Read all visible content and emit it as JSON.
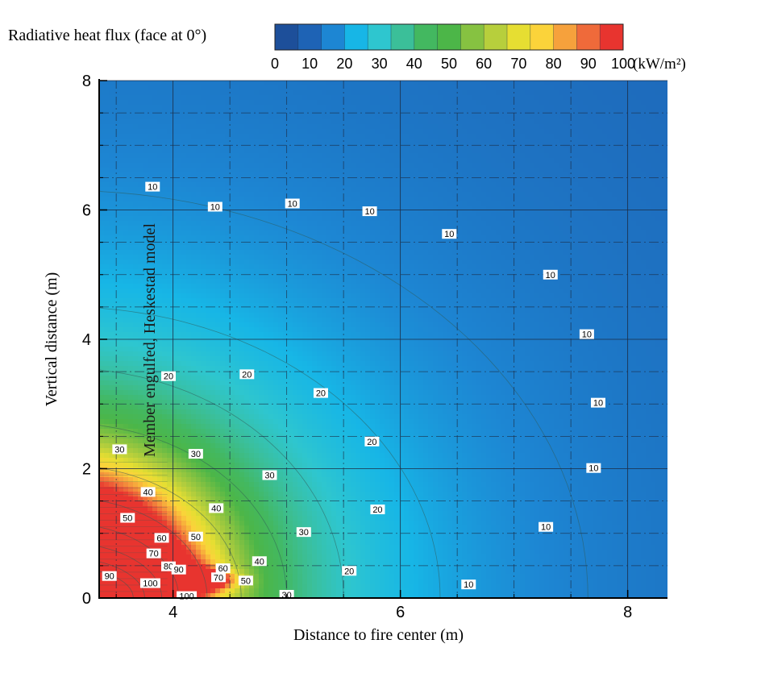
{
  "chart_data": {
    "type": "heatmap",
    "title": "",
    "colorbar": {
      "label": "Radiative heat flux (face at 0°)",
      "unit": "(kW/m²)",
      "ticks": [
        0,
        10,
        20,
        30,
        40,
        50,
        60,
        70,
        80,
        90,
        100
      ],
      "range": [
        0,
        100
      ],
      "colors": [
        "#1d4f9a",
        "#1e63b5",
        "#1d86d3",
        "#17b6e6",
        "#2ec6cf",
        "#3bbf99",
        "#43b860",
        "#4cb648",
        "#86c241",
        "#b7cf3c",
        "#e6de32",
        "#fbd33a",
        "#f6a13c",
        "#ef6a3a",
        "#e8342f"
      ]
    },
    "xlabel": "Distance to fire center (m)",
    "ylabel": "Vertical distance (m)",
    "xlim": [
      3.35,
      8.35
    ],
    "ylim": [
      0,
      8
    ],
    "xticks": [
      "4",
      "6",
      "8"
    ],
    "xtick_values": [
      4,
      6,
      8
    ],
    "yticks": [
      "0",
      "2",
      "4",
      "6",
      "8"
    ],
    "ytick_values": [
      0,
      2,
      4,
      6,
      8
    ],
    "grid": true,
    "annotation": "Member engulfed, Heskestad model",
    "contour_levels": [
      10,
      20,
      30,
      40,
      50,
      60,
      70,
      80,
      90,
      100
    ],
    "contour_labels": [
      {
        "text": "10",
        "x": 3.82,
        "y": 6.36
      },
      {
        "text": "10",
        "x": 4.37,
        "y": 6.05
      },
      {
        "text": "10",
        "x": 5.05,
        "y": 6.1
      },
      {
        "text": "10",
        "x": 5.73,
        "y": 5.98
      },
      {
        "text": "10",
        "x": 6.43,
        "y": 5.63
      },
      {
        "text": "10",
        "x": 7.32,
        "y": 5.0
      },
      {
        "text": "10",
        "x": 7.64,
        "y": 4.08
      },
      {
        "text": "10",
        "x": 7.74,
        "y": 3.02
      },
      {
        "text": "10",
        "x": 7.7,
        "y": 2.01
      },
      {
        "text": "10",
        "x": 7.28,
        "y": 1.1
      },
      {
        "text": "10",
        "x": 6.6,
        "y": 0.21
      },
      {
        "text": "20",
        "x": 3.96,
        "y": 3.43
      },
      {
        "text": "20",
        "x": 4.65,
        "y": 3.46
      },
      {
        "text": "20",
        "x": 5.3,
        "y": 3.17
      },
      {
        "text": "20",
        "x": 5.75,
        "y": 2.42
      },
      {
        "text": "20",
        "x": 5.8,
        "y": 1.37
      },
      {
        "text": "20",
        "x": 5.55,
        "y": 0.42
      },
      {
        "text": "30",
        "x": 3.53,
        "y": 2.3
      },
      {
        "text": "30",
        "x": 4.2,
        "y": 2.23
      },
      {
        "text": "30",
        "x": 4.85,
        "y": 1.9
      },
      {
        "text": "30",
        "x": 5.15,
        "y": 1.02
      },
      {
        "text": "30",
        "x": 5.0,
        "y": 0.05
      },
      {
        "text": "40",
        "x": 3.78,
        "y": 1.64
      },
      {
        "text": "40",
        "x": 4.38,
        "y": 1.39
      },
      {
        "text": "40",
        "x": 4.76,
        "y": 0.57
      },
      {
        "text": "50",
        "x": 3.6,
        "y": 1.24
      },
      {
        "text": "50",
        "x": 4.2,
        "y": 0.95
      },
      {
        "text": "50",
        "x": 4.64,
        "y": 0.27
      },
      {
        "text": "60",
        "x": 3.9,
        "y": 0.93
      },
      {
        "text": "60",
        "x": 4.44,
        "y": 0.46
      },
      {
        "text": "70",
        "x": 3.83,
        "y": 0.69
      },
      {
        "text": "70",
        "x": 4.4,
        "y": 0.32
      },
      {
        "text": "80",
        "x": 3.96,
        "y": 0.49
      },
      {
        "text": "90",
        "x": 3.44,
        "y": 0.34
      },
      {
        "text": "90",
        "x": 4.05,
        "y": 0.44
      },
      {
        "text": "100",
        "x": 3.8,
        "y": 0.23
      },
      {
        "text": "100",
        "x": 4.12,
        "y": 0.03
      }
    ]
  }
}
